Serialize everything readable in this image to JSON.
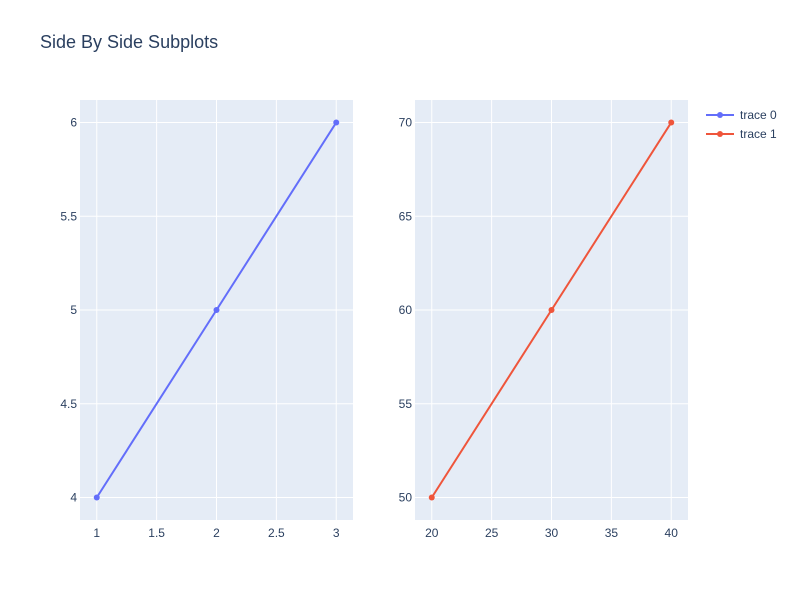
{
  "title": "Side By Side Subplots",
  "colors": {
    "plot_bg": "#e5ecf6",
    "grid": "#ffffff",
    "text": "#2a3f5f"
  },
  "chart_data": [
    {
      "type": "line",
      "title": "",
      "xlabel": "",
      "ylabel": "",
      "xlim": [
        0.86,
        3.14
      ],
      "ylim": [
        3.88,
        6.12
      ],
      "x_ticks": [
        1,
        1.5,
        2,
        2.5,
        3
      ],
      "y_ticks": [
        4,
        4.5,
        5,
        5.5,
        6
      ],
      "x_tick_labels": [
        "1",
        "1.5",
        "2",
        "2.5",
        "3"
      ],
      "y_tick_labels": [
        "4",
        "4.5",
        "5",
        "5.5",
        "6"
      ],
      "grid": true,
      "series": [
        {
          "name": "trace 0",
          "color": "#636efa",
          "x": [
            1,
            2,
            3
          ],
          "y": [
            4,
            5,
            6
          ]
        }
      ]
    },
    {
      "type": "line",
      "title": "",
      "xlabel": "",
      "ylabel": "",
      "xlim": [
        18.6,
        41.4
      ],
      "ylim": [
        48.8,
        71.2
      ],
      "x_ticks": [
        20,
        25,
        30,
        35,
        40
      ],
      "y_ticks": [
        50,
        55,
        60,
        65,
        70
      ],
      "x_tick_labels": [
        "20",
        "25",
        "30",
        "35",
        "40"
      ],
      "y_tick_labels": [
        "50",
        "55",
        "60",
        "65",
        "70"
      ],
      "grid": true,
      "series": [
        {
          "name": "trace 1",
          "color": "#ef553b",
          "x": [
            20,
            30,
            40
          ],
          "y": [
            50,
            60,
            70
          ]
        }
      ]
    }
  ],
  "legend": {
    "position": "top-right",
    "items": [
      {
        "name": "trace 0",
        "color": "#636efa"
      },
      {
        "name": "trace 1",
        "color": "#ef553b"
      }
    ]
  }
}
